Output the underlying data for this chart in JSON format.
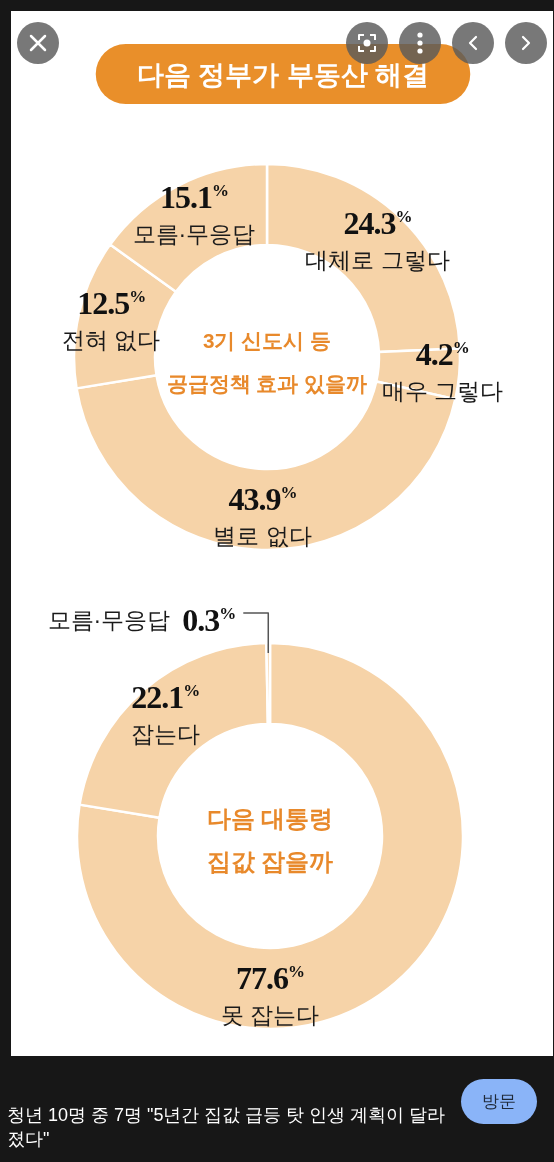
{
  "chart_data": [
    {
      "type": "donut",
      "title": "다음 정부가 부동산 해결",
      "subtitle": "3기 신도시 등\n공급정책 효과 있을까",
      "categories": [
        "대체로 그렇다",
        "매우 그렇다",
        "별로 없다",
        "전혀 없다",
        "모름·무응답"
      ],
      "values": [
        24.3,
        4.2,
        43.9,
        12.5,
        15.1
      ],
      "colors": [
        "#f6d3a8",
        "#f6d3a8",
        "#f6d3a8",
        "#f6d3a8",
        "#f6d3a8"
      ],
      "value_labels": [
        "24.3$^{%}$",
        "4.2$^{%}$",
        "43.9$^{%}$",
        "12.5$^{%}$",
        "15.1$^{%}$"
      ]
    },
    {
      "type": "donut",
      "subtitle": "다음 대통령\n집값 잡을까",
      "categories": [
        "못 잡는다",
        "잡는다",
        "모름·무응답"
      ],
      "values": [
        77.6,
        22.1,
        0.3
      ],
      "colors": [
        "#f6d3a8",
        "#f6d3a8",
        "#f6d3a8"
      ],
      "value_labels": [
        "77.6$^{%}$",
        "22.1$^{%}$",
        "0.3$^{%}$"
      ],
      "annotations": [
        "청년 10명 중 7명 \"5년간 집값 급등 탓 인생 계획이 달라졌다\"",
        "방문"
      ]
    }
  ]
}
